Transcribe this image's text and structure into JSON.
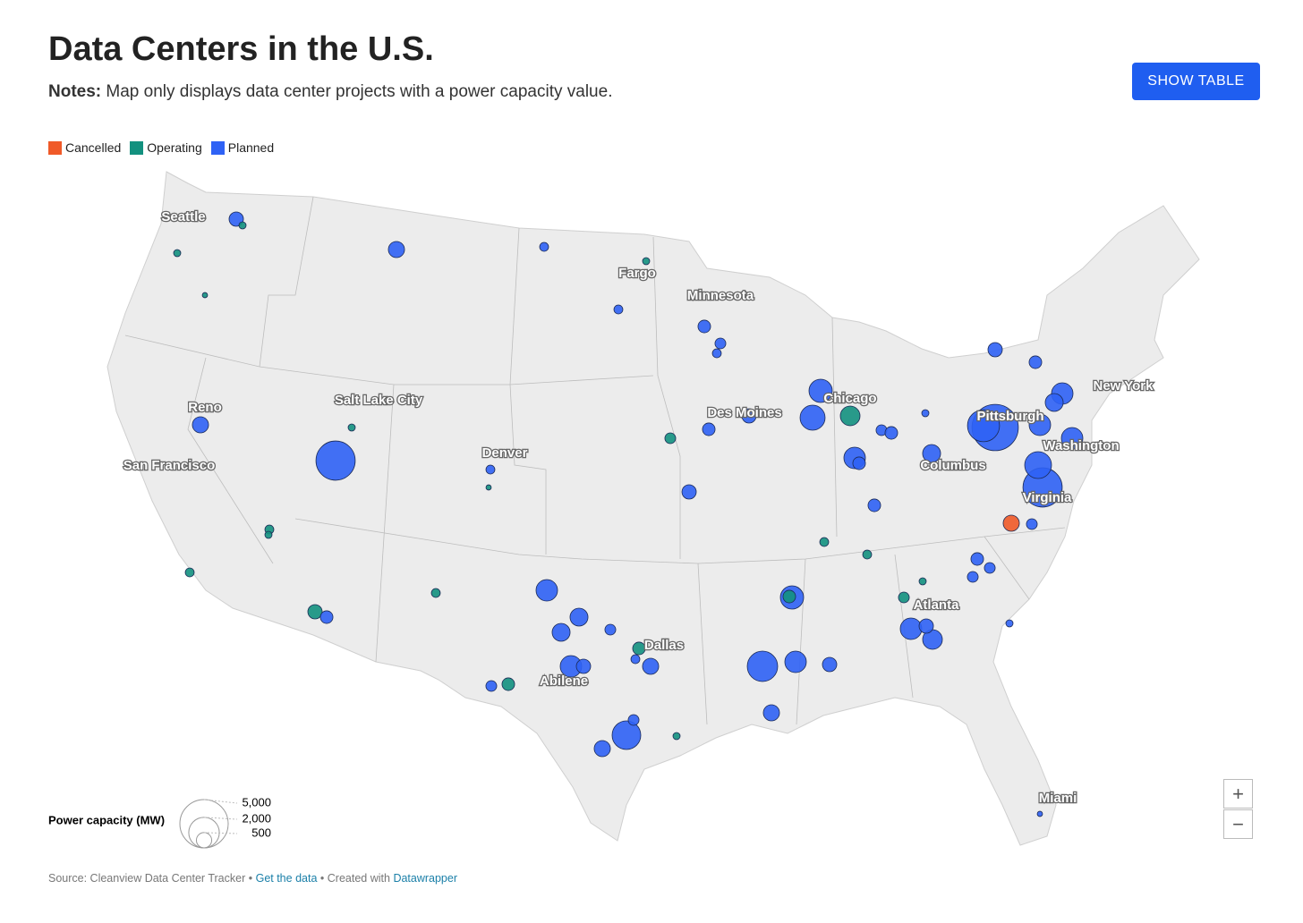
{
  "header": {
    "title": "Data Centers in the U.S.",
    "notes_label": "Notes:",
    "notes": "Map only displays data center projects with a power capacity value.",
    "button": "SHOW TABLE"
  },
  "legend": [
    {
      "name": "Cancelled",
      "color": "#f05a28"
    },
    {
      "name": "Operating",
      "color": "#13917f"
    },
    {
      "name": "Planned",
      "color": "#2f62f5"
    }
  ],
  "size_legend": {
    "title": "Power capacity (MW)",
    "ticks": [
      {
        "value": 5000,
        "label": "5,000"
      },
      {
        "value": 2000,
        "label": "2,000"
      },
      {
        "value": 500,
        "label": "500"
      }
    ]
  },
  "cities": [
    "Seattle",
    "Fargo",
    "Minnesota",
    "Reno",
    "Salt Lake City",
    "Des Moines",
    "Chicago",
    "Denver",
    "San Francisco",
    "Pittsburgh",
    "New York",
    "Washington",
    "Columbus",
    "Virginia",
    "Atlanta",
    "Dallas",
    "Abilene",
    "Miami"
  ],
  "points": [
    {
      "status": "Planned",
      "mw": 440
    },
    {
      "status": "Operating",
      "mw": 110
    },
    {
      "status": "Operating",
      "mw": 110
    },
    {
      "status": "Operating",
      "mw": 60
    },
    {
      "status": "Planned",
      "mw": 560
    },
    {
      "status": "Planned",
      "mw": 170
    },
    {
      "status": "Operating",
      "mw": 110
    },
    {
      "status": "Planned",
      "mw": 170
    },
    {
      "status": "Planned",
      "mw": 340
    },
    {
      "status": "Planned",
      "mw": 250
    },
    {
      "status": "Planned",
      "mw": 170
    },
    {
      "status": "Planned",
      "mw": 560
    },
    {
      "status": "Planned",
      "mw": 3300
    },
    {
      "status": "Operating",
      "mw": 110
    },
    {
      "status": "Planned",
      "mw": 170
    },
    {
      "status": "Operating",
      "mw": 60
    },
    {
      "status": "Operating",
      "mw": 170
    },
    {
      "status": "Operating",
      "mw": 110
    },
    {
      "status": "Operating",
      "mw": 170
    },
    {
      "status": "Operating",
      "mw": 440
    },
    {
      "status": "Planned",
      "mw": 340
    },
    {
      "status": "Operating",
      "mw": 170
    },
    {
      "status": "Planned",
      "mw": 990
    },
    {
      "status": "Planned",
      "mw": 690
    },
    {
      "status": "Planned",
      "mw": 690
    },
    {
      "status": "Planned",
      "mw": 990
    },
    {
      "status": "Planned",
      "mw": 440
    },
    {
      "status": "Planned",
      "mw": 250
    },
    {
      "status": "Operating",
      "mw": 340
    },
    {
      "status": "Operating",
      "mw": 340
    },
    {
      "status": "Planned",
      "mw": 560
    },
    {
      "status": "Planned",
      "mw": 170
    },
    {
      "status": "Planned",
      "mw": 250
    },
    {
      "status": "Planned",
      "mw": 1760
    },
    {
      "status": "Planned",
      "mw": 560
    },
    {
      "status": "Planned",
      "mw": 250
    },
    {
      "status": "Operating",
      "mw": 110
    },
    {
      "status": "Operating",
      "mw": 250
    },
    {
      "status": "Planned",
      "mw": 440
    },
    {
      "status": "Planned",
      "mw": 340
    },
    {
      "status": "Planned",
      "mw": 440
    },
    {
      "status": "Planned",
      "mw": 1340
    },
    {
      "status": "Planned",
      "mw": 1160
    },
    {
      "status": "Operating",
      "mw": 830
    },
    {
      "status": "Planned",
      "mw": 990
    },
    {
      "status": "Planned",
      "mw": 340
    },
    {
      "status": "Planned",
      "mw": 250
    },
    {
      "status": "Planned",
      "mw": 340
    },
    {
      "status": "Planned",
      "mw": 340
    },
    {
      "status": "Planned",
      "mw": 690
    },
    {
      "status": "Planned",
      "mw": 110
    },
    {
      "status": "Planned",
      "mw": 4600
    },
    {
      "status": "Planned",
      "mw": 2200
    },
    {
      "status": "Planned",
      "mw": 440
    },
    {
      "status": "Planned",
      "mw": 340
    },
    {
      "status": "Planned",
      "mw": 990
    },
    {
      "status": "Planned",
      "mw": 690
    },
    {
      "status": "Planned",
      "mw": 990
    },
    {
      "status": "Planned",
      "mw": 990
    },
    {
      "status": "Planned",
      "mw": 3300
    },
    {
      "status": "Planned",
      "mw": 1540
    },
    {
      "status": "Cancelled",
      "mw": 560
    },
    {
      "status": "Planned",
      "mw": 250
    },
    {
      "status": "Planned",
      "mw": 340
    },
    {
      "status": "Planned",
      "mw": 250
    },
    {
      "status": "Planned",
      "mw": 250
    },
    {
      "status": "Planned",
      "mw": 1160
    },
    {
      "status": "Operating",
      "mw": 340
    },
    {
      "status": "Planned",
      "mw": 1980
    },
    {
      "status": "Planned",
      "mw": 990
    },
    {
      "status": "Planned",
      "mw": 440
    },
    {
      "status": "Planned",
      "mw": 560
    },
    {
      "status": "Planned",
      "mw": 990
    },
    {
      "status": "Planned",
      "mw": 830
    },
    {
      "status": "Planned",
      "mw": 440
    },
    {
      "status": "Operating",
      "mw": 250
    },
    {
      "status": "Operating",
      "mw": 170
    },
    {
      "status": "Operating",
      "mw": 170
    },
    {
      "status": "Operating",
      "mw": 110
    },
    {
      "status": "Planned",
      "mw": 60
    },
    {
      "status": "Planned",
      "mw": 110
    }
  ],
  "zoom": [
    "+",
    "−"
  ],
  "footer": {
    "source": "Source: Cleanview Data Center Tracker",
    "separator": "•",
    "link1": "Get the data",
    "created": "Created with",
    "link2": "Datawrapper"
  }
}
